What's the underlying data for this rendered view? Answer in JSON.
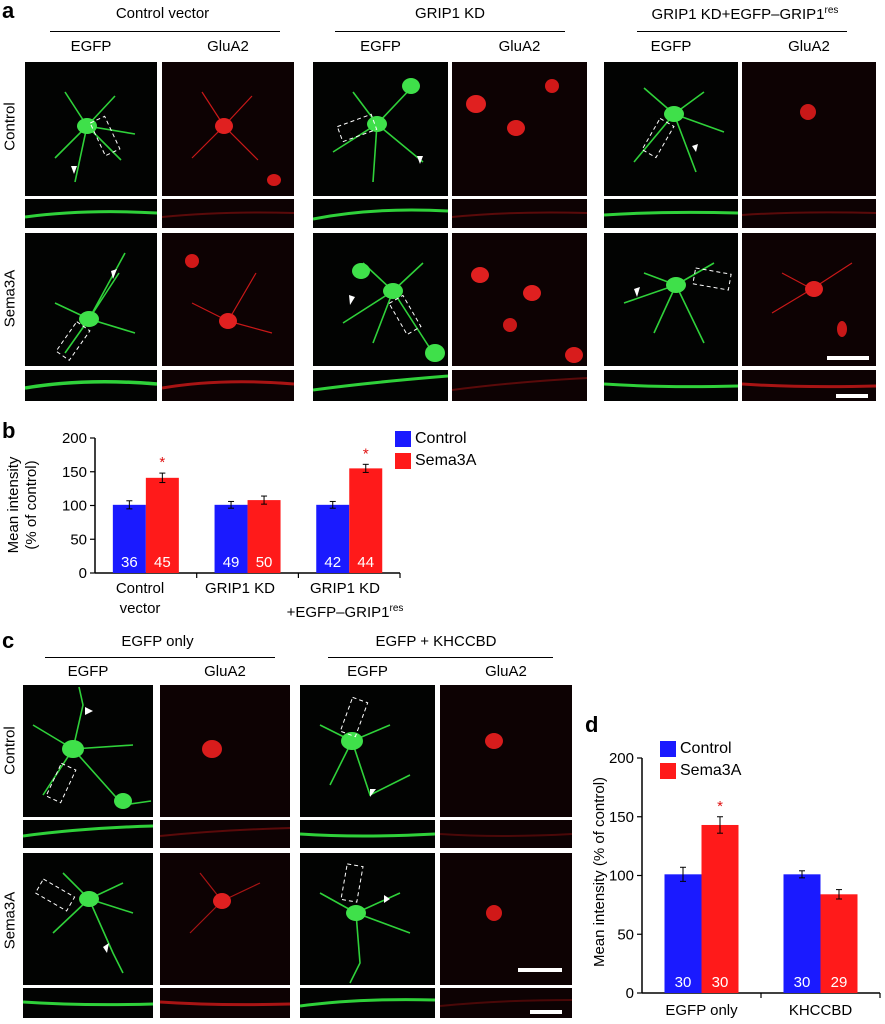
{
  "figure": {
    "panel_a": {
      "label": "a",
      "groups": [
        {
          "title": "Control vector",
          "col1": "EGFP",
          "col2": "GluA2"
        },
        {
          "title": "GRIP1 KD",
          "col1": "EGFP",
          "col2": "GluA2"
        },
        {
          "title": "GRIP1 KD+EGFP–GRIP1",
          "title_sup": "res",
          "col1": "EGFP",
          "col2": "GluA2"
        }
      ],
      "rows": [
        "Control",
        "Sema3A"
      ]
    },
    "panel_b": {
      "label": "b",
      "ylabel_line1": "Mean intensity",
      "ylabel_line2": "(% of control)",
      "yticks": [
        "0",
        "50",
        "100",
        "150",
        "200"
      ],
      "legend": [
        "Control",
        "Sema3A"
      ],
      "cat1_line1": "Control",
      "cat1_line2": "vector",
      "cat2": "GRIP1 KD",
      "cat3_line1": "GRIP1 KD",
      "cat3_line2": "+EGFP–GRIP1",
      "cat3_sup": "res",
      "star": "*"
    },
    "panel_c": {
      "label": "c",
      "groups": [
        {
          "title": "EGFP only",
          "col1": "EGFP",
          "col2": "GluA2"
        },
        {
          "title": "EGFP + KHCCBD",
          "col1": "EGFP",
          "col2": "GluA2"
        }
      ],
      "rows": [
        "Control",
        "Sema3A"
      ]
    },
    "panel_d": {
      "label": "d",
      "ylabel": "Mean intensity (% of control)",
      "yticks": [
        "0",
        "50",
        "100",
        "150",
        "200"
      ],
      "legend": [
        "Control",
        "Sema3A"
      ],
      "star": "*"
    }
  },
  "colors": {
    "control": "#1a1aff",
    "sema3a": "#ff1a1a",
    "star": "#e01010"
  },
  "chart_data": [
    {
      "type": "bar",
      "panel": "b",
      "ylabel": "Mean intensity (% of control)",
      "ylim": [
        0,
        200
      ],
      "categories": [
        "Control vector",
        "GRIP1 KD",
        "GRIP1 KD +EGFP–GRIP1res"
      ],
      "series": [
        {
          "name": "Control",
          "values": [
            101,
            101,
            101
          ],
          "errors": [
            6,
            5,
            5
          ],
          "n": [
            "36",
            "49",
            "42"
          ]
        },
        {
          "name": "Sema3A",
          "values": [
            141,
            108,
            155
          ],
          "errors": [
            7,
            6,
            6
          ],
          "n": [
            "45",
            "50",
            "44"
          ]
        }
      ],
      "significant": [
        [
          false,
          false,
          false
        ],
        [
          true,
          false,
          true
        ]
      ],
      "legend": "top-right"
    },
    {
      "type": "bar",
      "panel": "d",
      "ylabel": "Mean intensity (% of control)",
      "ylim": [
        0,
        200
      ],
      "categories": [
        "EGFP only",
        "KHCCBD"
      ],
      "series": [
        {
          "name": "Control",
          "values": [
            101,
            101
          ],
          "errors": [
            6,
            3
          ],
          "n": [
            "30",
            "30"
          ]
        },
        {
          "name": "Sema3A",
          "values": [
            143,
            84
          ],
          "errors": [
            7,
            4
          ],
          "n": [
            "30",
            "29"
          ]
        }
      ],
      "significant": [
        [
          false,
          false
        ],
        [
          true,
          false
        ]
      ],
      "legend": "top-left"
    }
  ]
}
